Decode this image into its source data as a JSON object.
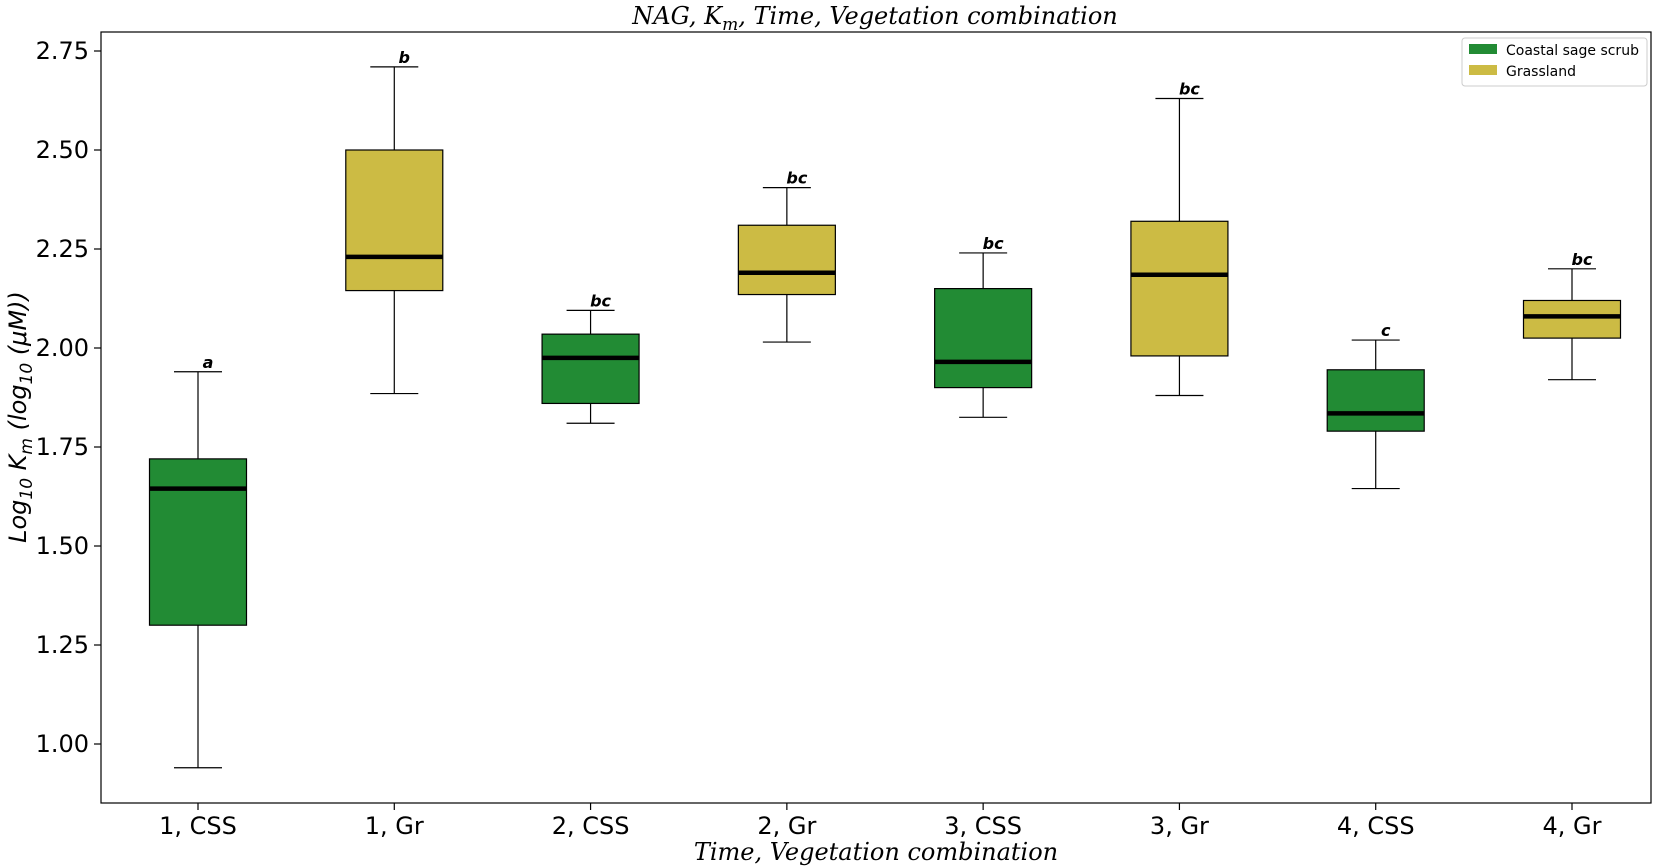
{
  "chart_data": {
    "type": "box",
    "title": "NAG, K_m, Time, Vegetation combination",
    "title_parts": {
      "prefix": "NAG, K",
      "sub": "m",
      "suffix": ", Time, Vegetation combination"
    },
    "xlabel": "Time, Vegetation combination",
    "ylabel": "Log10 K_m (log10 (μM))",
    "ylabel_parts": {
      "a": "Log",
      "a_sub": "10",
      "b": " K",
      "b_sub": "m",
      "c": " (log",
      "c_sub": "10",
      "d": " (μM))"
    },
    "ylim": [
      0.85,
      2.8
    ],
    "yticks": [
      "1.00",
      "1.25",
      "1.50",
      "1.75",
      "2.00",
      "2.25",
      "2.50",
      "2.75"
    ],
    "ytick_values": [
      1.0,
      1.25,
      1.5,
      1.75,
      2.0,
      2.25,
      2.5,
      2.75
    ],
    "grid": false,
    "legend_position": "top-right",
    "legend": [
      {
        "label": "Coastal sage scrub",
        "color": "#228b34"
      },
      {
        "label": "Grassland",
        "color": "#ccbb44"
      }
    ],
    "categories": [
      "1, CSS",
      "1, Gr",
      "2, CSS",
      "2, Gr",
      "3, CSS",
      "3, Gr",
      "4, CSS",
      "4, Gr"
    ],
    "boxes": [
      {
        "category": "1, CSS",
        "group": 0,
        "whisker_low": 0.94,
        "q1": 1.3,
        "median": 1.645,
        "q3": 1.72,
        "whisker_high": 1.94,
        "sig": "a"
      },
      {
        "category": "1, Gr",
        "group": 1,
        "whisker_low": 1.885,
        "q1": 2.145,
        "median": 2.23,
        "q3": 2.5,
        "whisker_high": 2.71,
        "sig": "b"
      },
      {
        "category": "2, CSS",
        "group": 0,
        "whisker_low": 1.81,
        "q1": 1.86,
        "median": 1.975,
        "q3": 2.035,
        "whisker_high": 2.095,
        "sig": "bc"
      },
      {
        "category": "2, Gr",
        "group": 1,
        "whisker_low": 2.015,
        "q1": 2.135,
        "median": 2.19,
        "q3": 2.31,
        "whisker_high": 2.405,
        "sig": "bc"
      },
      {
        "category": "3, CSS",
        "group": 0,
        "whisker_low": 1.825,
        "q1": 1.9,
        "median": 1.965,
        "q3": 2.15,
        "whisker_high": 2.24,
        "sig": "bc"
      },
      {
        "category": "3, Gr",
        "group": 1,
        "whisker_low": 1.88,
        "q1": 1.98,
        "median": 2.185,
        "q3": 2.32,
        "whisker_high": 2.63,
        "sig": "bc"
      },
      {
        "category": "4, CSS",
        "group": 0,
        "whisker_low": 1.645,
        "q1": 1.79,
        "median": 1.835,
        "q3": 1.945,
        "whisker_high": 2.02,
        "sig": "c"
      },
      {
        "category": "4, Gr",
        "group": 1,
        "whisker_low": 1.92,
        "q1": 2.025,
        "median": 2.08,
        "q3": 2.12,
        "whisker_high": 2.2,
        "sig": "bc"
      }
    ]
  }
}
